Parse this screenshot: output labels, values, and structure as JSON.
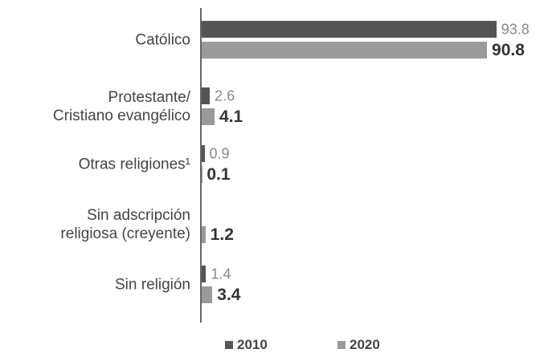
{
  "chart_data": {
    "type": "bar",
    "orientation": "horizontal",
    "categories": [
      "Católico",
      "Protestante/\nCristiano evangélico",
      "Otras religiones¹",
      "Sin adscripción\nreligiosa (creyente)",
      "Sin religión"
    ],
    "series": [
      {
        "name": "2010",
        "color": "#555555",
        "values": [
          93.8,
          2.6,
          0.9,
          null,
          1.4
        ]
      },
      {
        "name": "2020",
        "color": "#9a9a9a",
        "values": [
          90.8,
          4.1,
          0.1,
          1.2,
          3.4
        ]
      }
    ],
    "legend": "bottom"
  }
}
